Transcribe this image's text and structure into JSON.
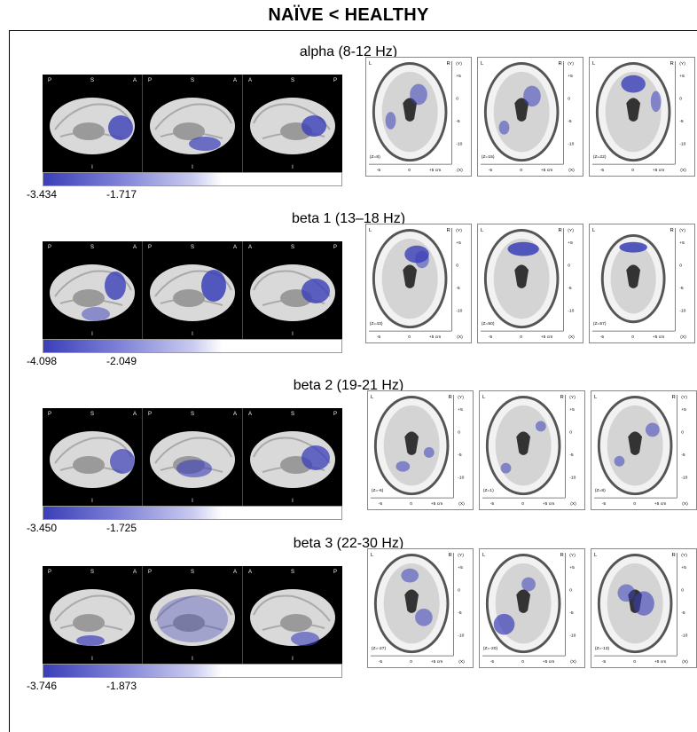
{
  "title": "NAÏVE < HEALTHY",
  "panels": [
    {
      "title": "alpha (8-12 Hz)",
      "min_label": "-3.434",
      "mid_label": "-1.717",
      "z": [
        "(Z=8)",
        "(Z=15)",
        "(Z=22)"
      ]
    },
    {
      "title": "beta 1 (13–18 Hz)",
      "min_label": "-4.098",
      "mid_label": "-2.049",
      "z": [
        "(Z=43)",
        "(Z=50)",
        "(Z=57)"
      ]
    },
    {
      "title": "beta 2 (19-21 Hz)",
      "min_label": "-3.450",
      "mid_label": "-1.725",
      "z": [
        "(Z=-6)",
        "(Z=1)",
        "(Z=8)"
      ]
    },
    {
      "title": "beta 3 (22-30 Hz)",
      "min_label": "-3.746",
      "mid_label": "-1.873",
      "z": [
        "(Z=-27)",
        "(Z=-20)",
        "(Z=-13)"
      ]
    }
  ],
  "brain_orientation": {
    "left_view": [
      "P",
      "S",
      "A"
    ],
    "middle_view": [
      "P",
      "S",
      "A"
    ],
    "right_view": [
      "A",
      "S",
      "P"
    ],
    "bottom": "I"
  },
  "mri_labels": {
    "left": "L",
    "right": "R",
    "y_axis": "(Y)",
    "x_axis": "(X)",
    "y_ticks": [
      "+5",
      "0",
      "-5",
      "-10"
    ],
    "x_ticks": [
      "-5",
      "0",
      "+5 cm"
    ]
  },
  "colors": {
    "activation": "#3a3fb8",
    "brain": "#d9d9d9",
    "background": "#000000"
  }
}
